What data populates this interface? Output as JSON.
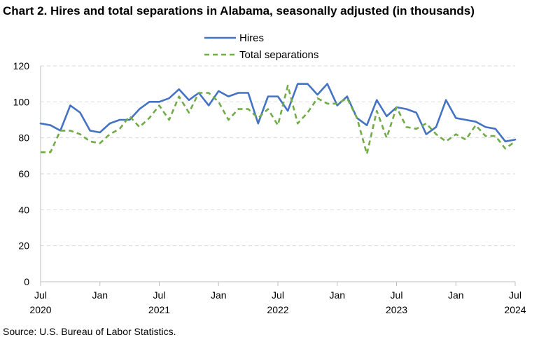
{
  "title": "Chart 2. Hires and total separations in Alabama, seasonally adjusted (in thousands)",
  "source": "Source: U.S. Bureau of Labor Statistics.",
  "colors": {
    "hires": "#4472C4",
    "separations": "#70AD47",
    "grid": "#d9d9d9",
    "axis": "#bfbfbf"
  },
  "chart_data": {
    "type": "line",
    "title": "Chart 2. Hires and total separations in Alabama, seasonally adjusted (in thousands)",
    "xlabel": "",
    "ylabel": "",
    "ylim": [
      0,
      120
    ],
    "yticks": [
      0,
      20,
      40,
      60,
      80,
      100,
      120
    ],
    "grid": true,
    "legend_position": "top-center",
    "x_start": "2020-07",
    "x_end": "2024-07",
    "x_ticks": [
      {
        "month": "2020-07",
        "label": "Jul",
        "year": "2020"
      },
      {
        "month": "2021-01",
        "label": "Jan",
        "year": ""
      },
      {
        "month": "2021-07",
        "label": "Jul",
        "year": "2021"
      },
      {
        "month": "2022-01",
        "label": "Jan",
        "year": ""
      },
      {
        "month": "2022-07",
        "label": "Jul",
        "year": "2022"
      },
      {
        "month": "2023-01",
        "label": "Jan",
        "year": ""
      },
      {
        "month": "2023-07",
        "label": "Jul",
        "year": "2023"
      },
      {
        "month": "2024-01",
        "label": "Jan",
        "year": ""
      },
      {
        "month": "2024-07",
        "label": "Jul",
        "year": "2024"
      }
    ],
    "x": [
      "2020-07",
      "2020-08",
      "2020-09",
      "2020-10",
      "2020-11",
      "2020-12",
      "2021-01",
      "2021-02",
      "2021-03",
      "2021-04",
      "2021-05",
      "2021-06",
      "2021-07",
      "2021-08",
      "2021-09",
      "2021-10",
      "2021-11",
      "2021-12",
      "2022-01",
      "2022-02",
      "2022-03",
      "2022-04",
      "2022-05",
      "2022-06",
      "2022-07",
      "2022-08",
      "2022-09",
      "2022-10",
      "2022-11",
      "2022-12",
      "2023-01",
      "2023-02",
      "2023-03",
      "2023-04",
      "2023-05",
      "2023-06",
      "2023-07",
      "2023-08",
      "2023-09",
      "2023-10",
      "2023-11",
      "2023-12",
      "2024-01",
      "2024-02",
      "2024-03",
      "2024-04",
      "2024-05",
      "2024-06",
      "2024-07"
    ],
    "series": [
      {
        "name": "Hires",
        "style": "solid",
        "values": [
          88,
          87,
          84,
          98,
          94,
          84,
          83,
          88,
          90,
          90,
          96,
          100,
          100,
          102,
          107,
          101,
          105,
          98,
          106,
          103,
          105,
          105,
          88,
          103,
          103,
          95,
          110,
          110,
          104,
          110,
          98,
          103,
          91,
          87,
          101,
          92,
          97,
          96,
          94,
          82,
          86,
          101,
          91,
          90,
          89,
          86,
          85,
          78,
          79
        ]
      },
      {
        "name": "Total separations",
        "style": "dashed",
        "values": [
          72,
          72,
          84,
          84,
          82,
          78,
          77,
          82,
          85,
          92,
          86,
          91,
          98,
          90,
          103,
          94,
          105,
          105,
          100,
          90,
          96,
          96,
          91,
          96,
          87,
          109,
          88,
          94,
          102,
          99,
          99,
          102,
          91,
          71,
          95,
          80,
          97,
          86,
          85,
          88,
          82,
          78,
          82,
          79,
          87,
          81,
          81,
          74,
          78
        ]
      }
    ]
  }
}
